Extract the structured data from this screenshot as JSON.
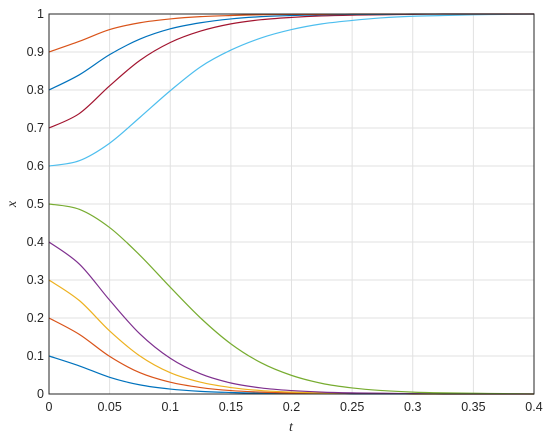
{
  "chart_data": {
    "type": "line",
    "xlabel": "t",
    "ylabel": "x",
    "xlim": [
      0,
      0.4
    ],
    "ylim": [
      0,
      1
    ],
    "xticks": [
      "0",
      "0.05",
      "0.1",
      "0.15",
      "0.2",
      "0.25",
      "0.3",
      "0.35",
      "0.4"
    ],
    "yticks": [
      "0",
      "0.1",
      "0.2",
      "0.3",
      "0.4",
      "0.5",
      "0.6",
      "0.7",
      "0.8",
      "0.9",
      "1"
    ],
    "grid": true,
    "x": [
      0,
      0.025,
      0.05,
      0.075,
      0.1,
      0.125,
      0.15,
      0.175,
      0.2,
      0.225,
      0.25,
      0.275,
      0.3,
      0.325,
      0.35,
      0.375,
      0.4
    ],
    "series": [
      {
        "color": "#0072BD",
        "values": [
          0.1,
          0.074,
          0.044,
          0.024,
          0.013,
          0.007,
          0.004,
          0.002,
          0.001,
          0.001,
          0.0,
          0.0,
          0.0,
          0.0,
          0.0,
          0.0,
          0.0
        ]
      },
      {
        "color": "#D95319",
        "values": [
          0.2,
          0.157,
          0.099,
          0.056,
          0.031,
          0.017,
          0.009,
          0.005,
          0.003,
          0.002,
          0.001,
          0.001,
          0.0,
          0.0,
          0.0,
          0.0,
          0.0
        ]
      },
      {
        "color": "#EDB120",
        "values": [
          0.3,
          0.246,
          0.166,
          0.1,
          0.056,
          0.031,
          0.017,
          0.009,
          0.005,
          0.003,
          0.002,
          0.001,
          0.0,
          0.0,
          0.0,
          0.0,
          0.0
        ]
      },
      {
        "color": "#7E2F8E",
        "values": [
          0.4,
          0.342,
          0.247,
          0.158,
          0.094,
          0.053,
          0.029,
          0.016,
          0.009,
          0.005,
          0.003,
          0.002,
          0.001,
          0.0,
          0.0,
          0.0,
          0.0
        ]
      },
      {
        "color": "#77AC30",
        "values": [
          0.5,
          0.486,
          0.438,
          0.365,
          0.281,
          0.2,
          0.132,
          0.082,
          0.049,
          0.028,
          0.016,
          0.009,
          0.005,
          0.003,
          0.002,
          0.001,
          0.0
        ]
      },
      {
        "color": "#4DBEEE",
        "values": [
          0.6,
          0.614,
          0.66,
          0.728,
          0.798,
          0.861,
          0.905,
          0.937,
          0.959,
          0.974,
          0.983,
          0.99,
          0.994,
          0.996,
          0.998,
          0.999,
          1.0
        ]
      },
      {
        "color": "#A2142F",
        "values": [
          0.7,
          0.738,
          0.811,
          0.878,
          0.925,
          0.955,
          0.974,
          0.985,
          0.991,
          0.995,
          0.997,
          0.998,
          0.999,
          1.0,
          1.0,
          1.0,
          1.0
        ]
      },
      {
        "color": "#0072BD",
        "values": [
          0.8,
          0.84,
          0.893,
          0.934,
          0.961,
          0.977,
          0.987,
          0.993,
          0.996,
          0.998,
          0.999,
          0.999,
          1.0,
          1.0,
          1.0,
          1.0,
          1.0
        ]
      },
      {
        "color": "#D95319",
        "values": [
          0.9,
          0.928,
          0.959,
          0.977,
          0.987,
          0.993,
          0.996,
          0.998,
          0.999,
          0.999,
          1.0,
          1.0,
          1.0,
          1.0,
          1.0,
          1.0,
          1.0
        ]
      }
    ]
  }
}
